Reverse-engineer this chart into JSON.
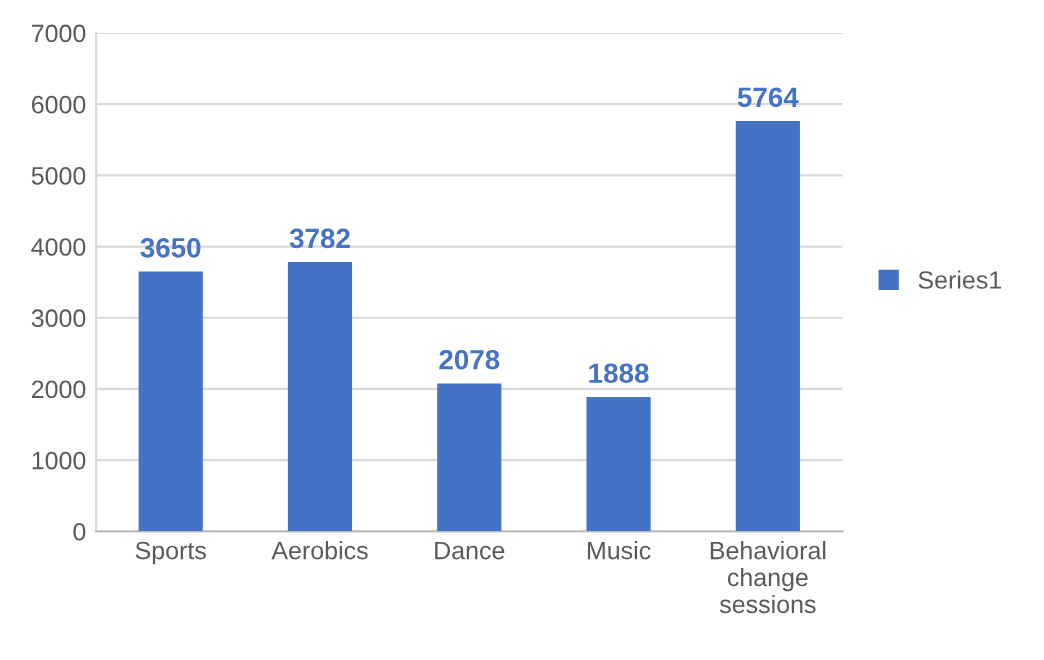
{
  "chart_data": {
    "type": "bar",
    "categories": [
      "Sports",
      "Aerobics",
      "Dance",
      "Music",
      "Behavioral\nchange\nsessions"
    ],
    "series": [
      {
        "name": "Series1",
        "color": "#4472c4",
        "values": [
          3650,
          3782,
          2078,
          1888,
          5764
        ]
      }
    ],
    "ylim": [
      0,
      7000
    ],
    "yticks": [
      0,
      1000,
      2000,
      3000,
      4000,
      5000,
      6000,
      7000
    ],
    "grid": "y",
    "legend": "right",
    "data_labels": true
  }
}
